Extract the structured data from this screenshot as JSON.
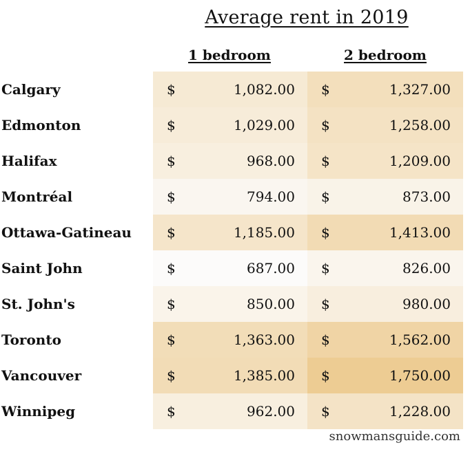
{
  "chart_data": {
    "type": "table",
    "title": "Average rent in 2019",
    "columns": [
      "1 bedroom",
      "2 bedroom"
    ],
    "currency_symbol": "$",
    "rows": [
      {
        "city": "Calgary",
        "one_bedroom": 1082.0,
        "two_bedroom": 1327.0,
        "one_text": "1,082.00",
        "two_text": "1,327.00"
      },
      {
        "city": "Edmonton",
        "one_bedroom": 1029.0,
        "two_bedroom": 1258.0,
        "one_text": "1,029.00",
        "two_text": "1,258.00"
      },
      {
        "city": "Halifax",
        "one_bedroom": 968.0,
        "two_bedroom": 1209.0,
        "one_text": "968.00",
        "two_text": "1,209.00"
      },
      {
        "city": "Montréal",
        "one_bedroom": 794.0,
        "two_bedroom": 873.0,
        "one_text": "794.00",
        "two_text": "873.00"
      },
      {
        "city": "Ottawa-Gatineau",
        "one_bedroom": 1185.0,
        "two_bedroom": 1413.0,
        "one_text": "1,185.00",
        "two_text": "1,413.00"
      },
      {
        "city": "Saint John",
        "one_bedroom": 687.0,
        "two_bedroom": 826.0,
        "one_text": "687.00",
        "two_text": "826.00"
      },
      {
        "city": "St. John's",
        "one_bedroom": 850.0,
        "two_bedroom": 980.0,
        "one_text": "850.00",
        "two_text": "980.00"
      },
      {
        "city": "Toronto",
        "one_bedroom": 1363.0,
        "two_bedroom": 1562.0,
        "one_text": "1,363.00",
        "two_text": "1,562.00"
      },
      {
        "city": "Vancouver",
        "one_bedroom": 1385.0,
        "two_bedroom": 1750.0,
        "one_text": "1,385.00",
        "two_text": "1,750.00"
      },
      {
        "city": "Winnipeg",
        "one_bedroom": 962.0,
        "two_bedroom": 1228.0,
        "one_text": "962.00",
        "two_text": "1,228.00"
      }
    ],
    "heatmap_colors": {
      "low": "#fcfbfa",
      "high": "#edcc93"
    },
    "color_scale_range": [
      687,
      1750
    ]
  },
  "credit": "snowmansguide.com"
}
